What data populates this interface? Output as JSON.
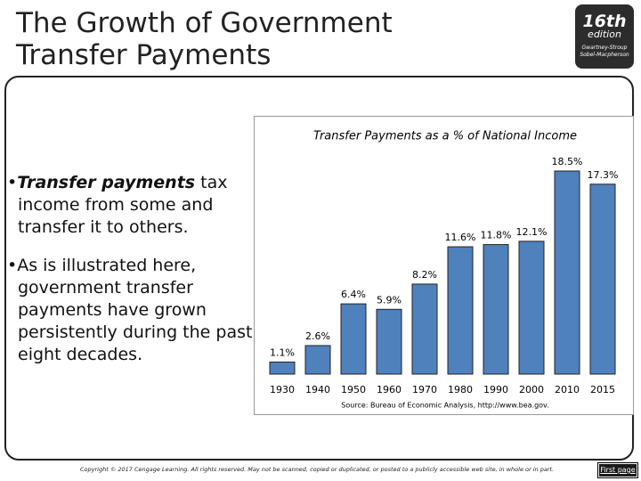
{
  "header": {
    "title": "The Growth of Government Transfer Payments"
  },
  "badge": {
    "edition": "16th",
    "edition_label": "edition",
    "authors": "Gwartney-Stroup Sobel-Macpherson"
  },
  "bullets": [
    {
      "emphasis": "Transfer payments",
      "text": " tax income from some and transfer it to others."
    },
    {
      "emphasis": "",
      "text": "As is illustrated here, government transfer payments have grown persistently during the past eight decades."
    }
  ],
  "chart_data": {
    "type": "bar",
    "title": "Transfer Payments as a % of National Income",
    "categories": [
      "1930",
      "1940",
      "1950",
      "1960",
      "1970",
      "1980",
      "1990",
      "2000",
      "2010",
      "2015"
    ],
    "values": [
      1.1,
      2.6,
      6.4,
      5.9,
      8.2,
      11.6,
      11.8,
      12.1,
      18.5,
      17.3
    ],
    "value_labels": [
      "1.1%",
      "2.6%",
      "6.4%",
      "5.9%",
      "8.2%",
      "11.6%",
      "11.8%",
      "12.1%",
      "18.5%",
      "17.3%"
    ],
    "color": "#4f81bd",
    "source": "Source: Bureau of Economic Analysis, http://www.bea.gov."
  },
  "footer": {
    "copyright": "Copyright © 2017 Cengage Learning. All rights reserved. May not be scanned, copied or duplicated, or posted to a publicly accessible web site, in whole or in part.",
    "button": "First page"
  }
}
